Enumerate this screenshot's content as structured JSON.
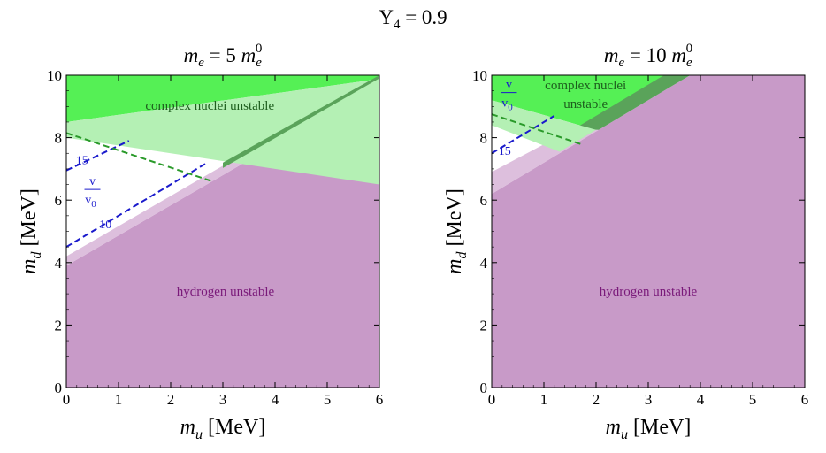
{
  "figure_title": "Y",
  "figure_title_sub": "4",
  "figure_title_rest": " = 0.9",
  "colors": {
    "hydrogen": "#c89ac8",
    "hydrogen_light": "#ddbfdd",
    "nuclei": "#55f055",
    "nuclei_overlap": "#5aa35a",
    "nuclei_light": "#b4f0b4",
    "contour_v": "#1a1acc",
    "contour_green": "#2a9a2a",
    "hydrogen_label": "#7a1a7a",
    "nuclei_label": "#1e5e1e"
  },
  "panels": [
    {
      "title_var": "m",
      "title_sub": "e",
      "title_mid": " = 5 ",
      "title_var2": "m",
      "title_sub2": "e",
      "title_sup2": "0",
      "xlabel_var": "m",
      "xlabel_sub": "u",
      "xlabel_unit": " [MeV]",
      "ylabel_var": "m",
      "ylabel_sub": "d",
      "ylabel_unit": " [MeV]",
      "hydrogen_label": "hydrogen unstable",
      "nuclei_label_lines": [
        "complex nuclei unstable"
      ],
      "ratio_label_num": "v",
      "ratio_label_den": "v",
      "ratio_label_den_sub": "0",
      "contour_labels": [
        "15",
        "10"
      ]
    },
    {
      "title_var": "m",
      "title_sub": "e",
      "title_mid": " = 10 ",
      "title_var2": "m",
      "title_sub2": "e",
      "title_sup2": "0",
      "xlabel_var": "m",
      "xlabel_sub": "u",
      "xlabel_unit": " [MeV]",
      "ylabel_var": "m",
      "ylabel_sub": "d",
      "ylabel_unit": " [MeV]",
      "hydrogen_label": "hydrogen unstable",
      "nuclei_label_lines": [
        "complex nuclei",
        "unstable"
      ],
      "ratio_label_num": "v",
      "ratio_label_den": "v",
      "ratio_label_den_sub": "0",
      "contour_labels": [
        "15"
      ]
    }
  ],
  "chart_data": [
    {
      "type": "area",
      "title": "m_e = 5 m_e^0",
      "xlabel": "m_u [MeV]",
      "ylabel": "m_d [MeV]",
      "xlim": [
        0,
        6
      ],
      "ylim": [
        0,
        10
      ],
      "xticks": [
        0,
        1,
        2,
        3,
        4,
        5,
        6
      ],
      "yticks": [
        0,
        2,
        4,
        6,
        8,
        10
      ],
      "regions": [
        {
          "name": "hydrogen unstable",
          "style": "solid",
          "polygon": [
            [
              0,
              0
            ],
            [
              6,
              0
            ],
            [
              6,
              9.7
            ],
            [
              0,
              3.9
            ]
          ]
        },
        {
          "name": "hydrogen unstable",
          "style": "light",
          "polygon": [
            [
              0,
              3.9
            ],
            [
              6,
              9.7
            ],
            [
              6,
              10
            ],
            [
              0,
              4.2
            ]
          ]
        },
        {
          "name": "complex nuclei unstable",
          "style": "solid",
          "polygon": [
            [
              0,
              10
            ],
            [
              6,
              10
            ],
            [
              6,
              9.88
            ],
            [
              0,
              8.5
            ]
          ]
        },
        {
          "name": "complex nuclei unstable",
          "style": "light",
          "polygon": [
            [
              0,
              8.5
            ],
            [
              6,
              9.88
            ],
            [
              6,
              6.5
            ],
            [
              0,
              8.0
            ]
          ]
        },
        {
          "name": "complex nuclei unstable",
          "style": "overlap",
          "polygon": [
            [
              3.0,
              7.03
            ],
            [
              6,
              9.9
            ],
            [
              6,
              10
            ],
            [
              3.0,
              7.2
            ]
          ]
        }
      ],
      "contours": [
        {
          "label": "15",
          "quantity": "v/v_0",
          "points": [
            [
              0,
              6.95
            ],
            [
              1.2,
              7.9
            ]
          ]
        },
        {
          "label": "10",
          "quantity": "v/v_0",
          "points": [
            [
              0,
              4.5
            ],
            [
              2.7,
              7.2
            ]
          ]
        },
        {
          "label": "",
          "quantity": "green",
          "points": [
            [
              0,
              8.15
            ],
            [
              2.8,
              6.6
            ]
          ]
        }
      ],
      "annotations": [
        "complex nuclei unstable",
        "hydrogen unstable",
        "v/v_0",
        "15",
        "10"
      ]
    },
    {
      "type": "area",
      "title": "m_e = 10 m_e^0",
      "xlabel": "m_u [MeV]",
      "ylabel": "m_d [MeV]",
      "xlim": [
        0,
        6
      ],
      "ylim": [
        0,
        10
      ],
      "xticks": [
        0,
        1,
        2,
        3,
        4,
        5,
        6
      ],
      "yticks": [
        0,
        2,
        4,
        6,
        8,
        10
      ],
      "regions": [
        {
          "name": "hydrogen unstable",
          "style": "solid",
          "polygon": [
            [
              0,
              0
            ],
            [
              6,
              0
            ],
            [
              6,
              10
            ],
            [
              3.8,
              10
            ],
            [
              0,
              6.2
            ]
          ]
        },
        {
          "name": "hydrogen unstable",
          "style": "light",
          "polygon": [
            [
              0,
              6.2
            ],
            [
              3.8,
              10
            ],
            [
              3.5,
              10
            ],
            [
              0,
              6.9
            ]
          ]
        },
        {
          "name": "complex nuclei unstable",
          "style": "solid",
          "polygon": [
            [
              0,
              10
            ],
            [
              3.8,
              10
            ],
            [
              2.0,
              8.25
            ],
            [
              0,
              9.2
            ]
          ]
        },
        {
          "name": "complex nuclei unstable",
          "style": "overlap",
          "polygon": [
            [
              2.05,
              8.25
            ],
            [
              3.8,
              10
            ],
            [
              3.3,
              10
            ],
            [
              1.6,
              8.3
            ]
          ]
        },
        {
          "name": "complex nuclei unstable",
          "style": "light",
          "polygon": [
            [
              0,
              9.2
            ],
            [
              2.0,
              8.25
            ],
            [
              1.3,
              7.55
            ],
            [
              0,
              8.4
            ]
          ]
        }
      ],
      "contours": [
        {
          "label": "15",
          "quantity": "v/v_0",
          "points": [
            [
              0,
              7.5
            ],
            [
              1.2,
              8.7
            ]
          ]
        },
        {
          "label": "",
          "quantity": "green",
          "points": [
            [
              0,
              8.75
            ],
            [
              1.7,
              7.8
            ]
          ]
        }
      ],
      "annotations": [
        "complex nuclei unstable",
        "hydrogen unstable",
        "v/v_0",
        "15"
      ]
    }
  ]
}
